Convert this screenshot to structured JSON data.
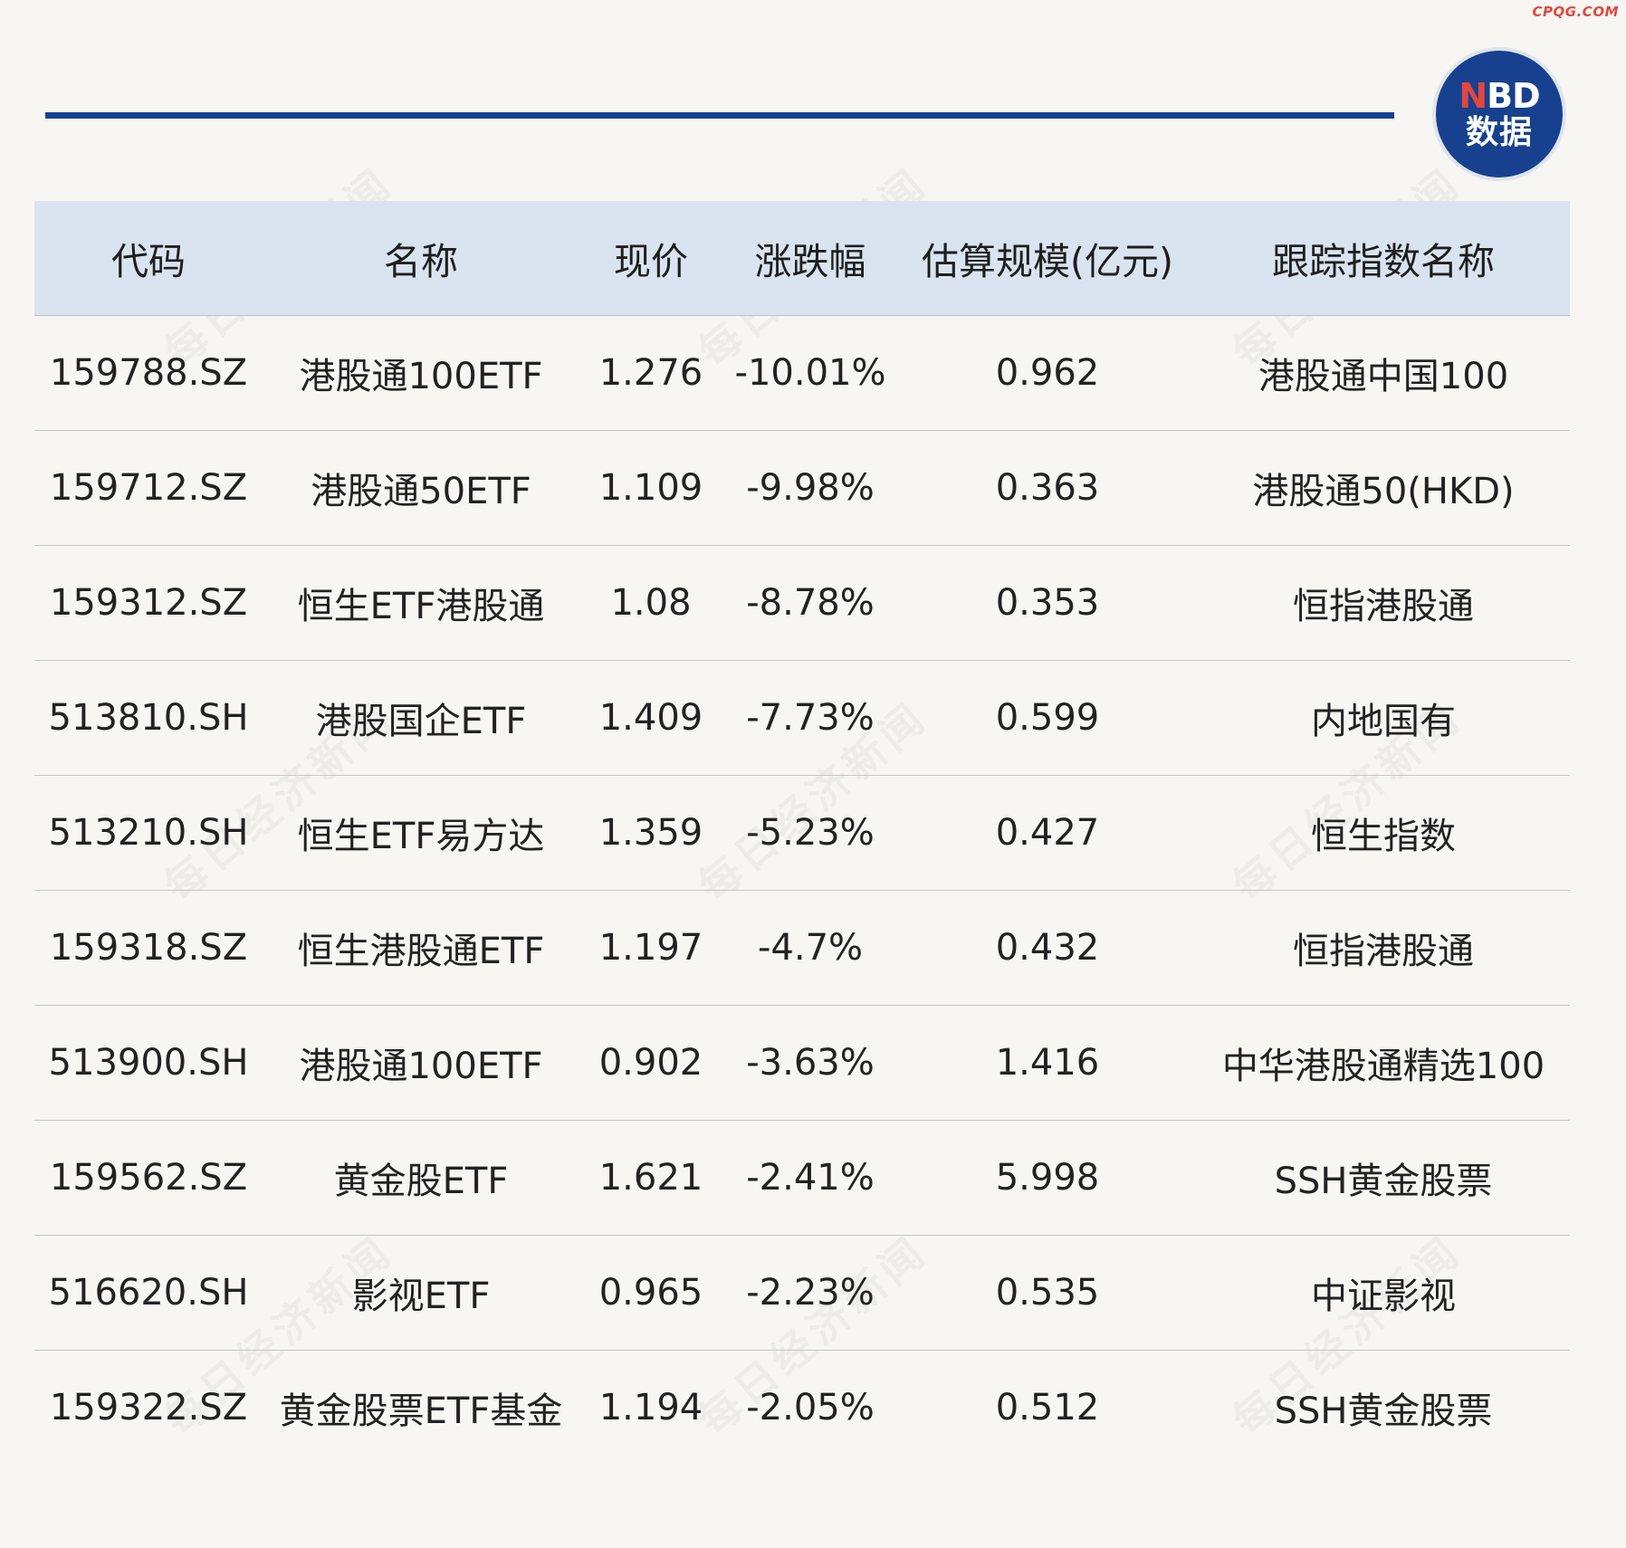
{
  "site_watermark": "CPQG.COM",
  "logo": {
    "line1_n": "N",
    "line1_bd": "BD",
    "line2": "数据"
  },
  "background_watermark": "每日经济新闻",
  "colors": {
    "brand_blue": "#17418e",
    "accent_red": "#e2463f",
    "header_bg": "#d9e4f0",
    "page_bg": "#f8f6f2"
  },
  "table": {
    "headers": [
      "代码",
      "名称",
      "现价",
      "涨跌幅",
      "估算规模(亿元)",
      "跟踪指数名称"
    ],
    "rows": [
      [
        "159788.SZ",
        "港股通100ETF",
        "1.276",
        "-10.01%",
        "0.962",
        "港股通中国100"
      ],
      [
        "159712.SZ",
        "港股通50ETF",
        "1.109",
        "-9.98%",
        "0.363",
        "港股通50(HKD)"
      ],
      [
        "159312.SZ",
        "恒生ETF港股通",
        "1.08",
        "-8.78%",
        "0.353",
        "恒指港股通"
      ],
      [
        "513810.SH",
        "港股国企ETF",
        "1.409",
        "-7.73%",
        "0.599",
        "内地国有"
      ],
      [
        "513210.SH",
        "恒生ETF易方达",
        "1.359",
        "-5.23%",
        "0.427",
        "恒生指数"
      ],
      [
        "159318.SZ",
        "恒生港股通ETF",
        "1.197",
        "-4.7%",
        "0.432",
        "恒指港股通"
      ],
      [
        "513900.SH",
        "港股通100ETF",
        "0.902",
        "-3.63%",
        "1.416",
        "中华港股通精选100"
      ],
      [
        "159562.SZ",
        "黄金股ETF",
        "1.621",
        "-2.41%",
        "5.998",
        "SSH黄金股票"
      ],
      [
        "516620.SH",
        "影视ETF",
        "0.965",
        "-2.23%",
        "0.535",
        "中证影视"
      ],
      [
        "159322.SZ",
        "黄金股票ETF基金",
        "1.194",
        "-2.05%",
        "0.512",
        "SSH黄金股票"
      ]
    ]
  }
}
